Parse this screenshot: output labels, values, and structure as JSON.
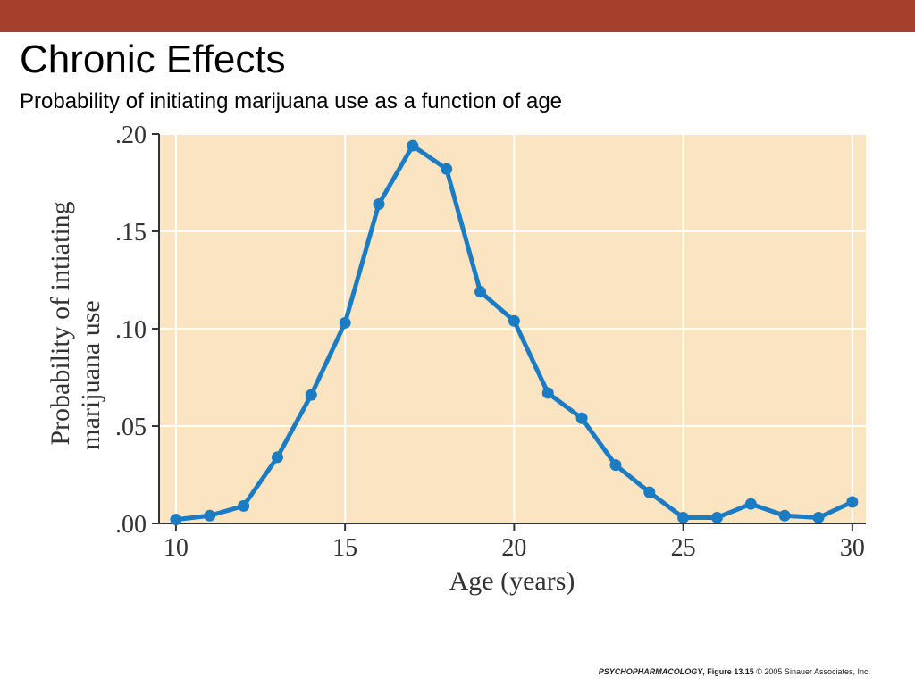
{
  "slide": {
    "title": "Chronic Effects",
    "subtitle": "Probability of initiating marijuana use as a function of age",
    "accent_color": "#a5402d"
  },
  "credit": {
    "book": "PSYCHOPHARMACOLOGY",
    "figure": ", Figure 13.15",
    "copyright": " © 2005 Sinauer Associates, Inc."
  },
  "chart_data": {
    "type": "line",
    "xlabel": "Age (years)",
    "ylabel_lines": [
      "Probability of intiating",
      "marijuana use"
    ],
    "xlim": [
      9.5,
      30.4
    ],
    "ylim": [
      0,
      0.2
    ],
    "x_ticks": [
      10,
      15,
      20,
      25,
      30
    ],
    "x_tick_labels": [
      "10",
      "15",
      "20",
      "25",
      "30"
    ],
    "y_ticks": [
      0,
      0.05,
      0.1,
      0.15,
      0.2
    ],
    "y_tick_labels": [
      ".00",
      ".05",
      ".10",
      ".15",
      ".20"
    ],
    "grid": true,
    "background_color": "#fbe4c2",
    "line_color": "#1b7cc4",
    "series": [
      {
        "x": [
          10,
          11,
          12,
          13,
          14,
          15,
          16,
          17,
          18,
          19,
          20,
          21,
          22,
          23,
          24,
          25,
          26,
          27,
          28,
          29,
          30
        ],
        "values": [
          0.002,
          0.004,
          0.009,
          0.034,
          0.066,
          0.103,
          0.164,
          0.194,
          0.182,
          0.119,
          0.104,
          0.067,
          0.054,
          0.03,
          0.016,
          0.003,
          0.003,
          0.01,
          0.004,
          0.003,
          0.011
        ]
      }
    ]
  }
}
